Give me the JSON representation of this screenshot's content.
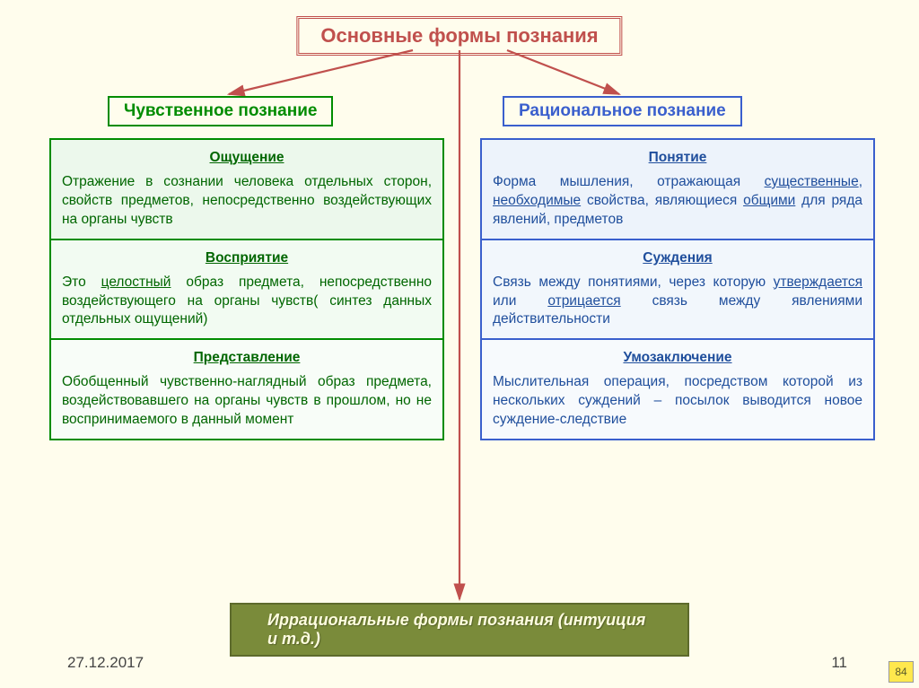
{
  "title": "Основные формы познания",
  "left": {
    "heading": "Чувственное познание",
    "cells": [
      {
        "title": "Ощущение",
        "body": "Отражение в сознании человека отдельных сторон, свойств предметов, непосредственно воздействующих на органы чувств"
      },
      {
        "title": "Восприятие",
        "body": "Это <span class='u'>целостный</span> образ предмета, непосредственно воздействующего на органы чувств( синтез данных отдельных ощущений)"
      },
      {
        "title": "Представление",
        "body": "Обобщенный чувственно-наглядный образ предмета, воздействовавшего на органы чувств в прошлом, но не воспринимаемого в данный момент"
      }
    ]
  },
  "right": {
    "heading": "Рациональное познание",
    "cells": [
      {
        "title": "Понятие",
        "body": "Форма мышления, отражающая <span class='u'>существенные</span>, <span class='u'>необходимые</span> свойства, являющиеся <span class='u'>общими</span> для ряда явлений, предметов"
      },
      {
        "title": "Суждения",
        "body": "Связь между понятиями, через которую <span class='u'>утверждается</span> или <span class='u'>отрицается</span> связь между явлениями действительности"
      },
      {
        "title": "Умозаключение",
        "body": "Мыслительная операция, посредством которой из нескольких суждений – посылок выводится новое суждение-следствие"
      }
    ]
  },
  "bottom": "Иррациональные формы познания (интуиция и т.д.)",
  "date": "27.12.2017",
  "page": "11",
  "badge": "84",
  "arrows": {
    "stroke": "#c0504d",
    "fill": "#c0504d"
  }
}
